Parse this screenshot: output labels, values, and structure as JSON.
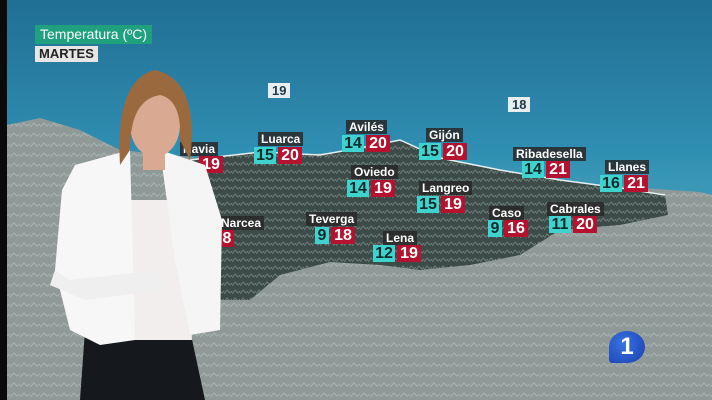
{
  "header": {
    "title": "Temperatura (ºC)",
    "day": "MARTES"
  },
  "sea_temps": [
    {
      "value": "19"
    },
    {
      "value": "18"
    }
  ],
  "cities": [
    {
      "name": "Navia",
      "min": "",
      "max": "19"
    },
    {
      "name": "Luarca",
      "min": "15",
      "max": "20"
    },
    {
      "name": "Avilés",
      "min": "14",
      "max": "20"
    },
    {
      "name": "Gijón",
      "min": "15",
      "max": "20"
    },
    {
      "name": "Ribadesella",
      "min": "14",
      "max": "21"
    },
    {
      "name": "Llanes",
      "min": "16",
      "max": "21"
    },
    {
      "name": "Oviedo",
      "min": "14",
      "max": "19"
    },
    {
      "name": "Langreo",
      "min": "15",
      "max": "19"
    },
    {
      "name": "Teverga",
      "min": "9",
      "max": "18"
    },
    {
      "name": "Lena",
      "min": "12",
      "max": "19"
    },
    {
      "name": "Caso",
      "min": "9",
      "max": "16"
    },
    {
      "name": "Cabrales",
      "min": "11",
      "max": "20"
    },
    {
      "name": "Narcea",
      "min": "",
      "max": "8"
    }
  ],
  "colors": {
    "min_temp": "#3fd3d0",
    "max_temp": "#b5122f",
    "title_bg": "#1fa07e"
  },
  "logo": {
    "text": "1",
    "icon": "tve-1-logo"
  }
}
